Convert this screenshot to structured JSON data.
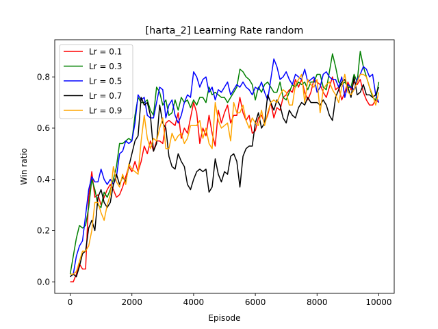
{
  "chart_data": {
    "type": "line",
    "title": "[harta_2] Learning Rate  random",
    "xlabel": "Episode",
    "ylabel": "Win ratio",
    "xlim": [
      -500,
      10500
    ],
    "ylim": [
      -0.045,
      0.945
    ],
    "xticks": [
      0,
      2000,
      4000,
      6000,
      8000,
      10000
    ],
    "xtick_labels": [
      "0",
      "2000",
      "4000",
      "6000",
      "8000",
      "10000"
    ],
    "yticks": [
      0.0,
      0.2,
      0.4,
      0.6,
      0.8
    ],
    "ytick_labels": [
      "0.0",
      "0.2",
      "0.4",
      "0.6",
      "0.8"
    ],
    "grid": false,
    "legend": "upper-left",
    "x": [
      0,
      100,
      200,
      300,
      400,
      500,
      600,
      700,
      800,
      900,
      1000,
      1100,
      1200,
      1300,
      1400,
      1500,
      1600,
      1700,
      1800,
      1900,
      2000,
      2100,
      2200,
      2300,
      2400,
      2500,
      2600,
      2700,
      2800,
      2900,
      3000,
      3100,
      3200,
      3300,
      3400,
      3500,
      3600,
      3700,
      3800,
      3900,
      4000,
      4100,
      4200,
      4300,
      4400,
      4500,
      4600,
      4700,
      4800,
      4900,
      5000,
      5100,
      5200,
      5300,
      5400,
      5500,
      5600,
      5700,
      5800,
      5900,
      6000,
      6100,
      6200,
      6300,
      6400,
      6500,
      6600,
      6700,
      6800,
      6900,
      7000,
      7100,
      7200,
      7300,
      7400,
      7500,
      7600,
      7700,
      7800,
      7900,
      8000,
      8100,
      8200,
      8300,
      8400,
      8500,
      8600,
      8700,
      8800,
      8900,
      9000,
      9100,
      9200,
      9300,
      9400,
      9500,
      9600,
      9700,
      9800,
      9900,
      10000
    ],
    "series": [
      {
        "name": "Lr = 0.1",
        "color": "#ff0000",
        "values": [
          0.0,
          0.0,
          0.03,
          0.07,
          0.05,
          0.05,
          0.33,
          0.43,
          0.33,
          0.34,
          0.3,
          0.33,
          0.36,
          0.38,
          0.36,
          0.33,
          0.34,
          0.37,
          0.41,
          0.45,
          0.43,
          0.47,
          0.43,
          0.47,
          0.53,
          0.5,
          0.55,
          0.51,
          0.55,
          0.55,
          0.54,
          0.62,
          0.63,
          0.62,
          0.61,
          0.66,
          0.56,
          0.6,
          0.58,
          0.64,
          0.7,
          0.66,
          0.54,
          0.6,
          0.57,
          0.65,
          0.58,
          0.53,
          0.67,
          0.62,
          0.66,
          0.69,
          0.62,
          0.65,
          0.65,
          0.72,
          0.66,
          0.63,
          0.65,
          0.58,
          0.59,
          0.64,
          0.65,
          0.62,
          0.65,
          0.7,
          0.64,
          0.68,
          0.67,
          0.72,
          0.73,
          0.75,
          0.74,
          0.79,
          0.76,
          0.79,
          0.74,
          0.71,
          0.74,
          0.79,
          0.78,
          0.77,
          0.74,
          0.72,
          0.76,
          0.8,
          0.75,
          0.76,
          0.71,
          0.74,
          0.78,
          0.75,
          0.78,
          0.77,
          0.79,
          0.74,
          0.71,
          0.69,
          0.69,
          0.71,
          0.7
        ]
      },
      {
        "name": "Lr = 0.3",
        "color": "#008000",
        "values": [
          0.03,
          0.1,
          0.17,
          0.22,
          0.21,
          0.22,
          0.29,
          0.4,
          0.36,
          0.3,
          0.29,
          0.35,
          0.33,
          0.36,
          0.4,
          0.45,
          0.54,
          0.54,
          0.55,
          0.56,
          0.55,
          0.65,
          0.72,
          0.7,
          0.7,
          0.71,
          0.67,
          0.65,
          0.76,
          0.74,
          0.69,
          0.71,
          0.65,
          0.66,
          0.71,
          0.67,
          0.72,
          0.7,
          0.71,
          0.68,
          0.71,
          0.69,
          0.72,
          0.72,
          0.7,
          0.76,
          0.73,
          0.74,
          0.73,
          0.72,
          0.72,
          0.7,
          0.72,
          0.74,
          0.76,
          0.83,
          0.82,
          0.8,
          0.79,
          0.77,
          0.71,
          0.76,
          0.74,
          0.77,
          0.78,
          0.76,
          0.74,
          0.74,
          0.78,
          0.72,
          0.71,
          0.74,
          0.77,
          0.76,
          0.78,
          0.77,
          0.78,
          0.75,
          0.78,
          0.78,
          0.81,
          0.81,
          0.76,
          0.75,
          0.82,
          0.89,
          0.84,
          0.78,
          0.77,
          0.78,
          0.76,
          0.76,
          0.81,
          0.78,
          0.9,
          0.84,
          0.8,
          0.76,
          0.72,
          0.71,
          0.78
        ]
      },
      {
        "name": "Lr = 0.5",
        "color": "#0000ff",
        "values": [
          0.02,
          0.03,
          0.1,
          0.14,
          0.16,
          0.26,
          0.36,
          0.41,
          0.39,
          0.39,
          0.44,
          0.4,
          0.38,
          0.4,
          0.38,
          0.41,
          0.5,
          0.51,
          0.55,
          0.54,
          0.55,
          0.62,
          0.73,
          0.71,
          0.72,
          0.65,
          0.64,
          0.64,
          0.7,
          0.76,
          0.75,
          0.64,
          0.69,
          0.71,
          0.65,
          0.62,
          0.65,
          0.7,
          0.73,
          0.72,
          0.82,
          0.8,
          0.76,
          0.79,
          0.8,
          0.74,
          0.76,
          0.71,
          0.75,
          0.74,
          0.76,
          0.78,
          0.73,
          0.75,
          0.77,
          0.76,
          0.78,
          0.76,
          0.75,
          0.73,
          0.76,
          0.75,
          0.78,
          0.74,
          0.71,
          0.79,
          0.87,
          0.84,
          0.79,
          0.8,
          0.82,
          0.79,
          0.77,
          0.81,
          0.8,
          0.79,
          0.83,
          0.78,
          0.79,
          0.8,
          0.74,
          0.76,
          0.81,
          0.82,
          0.8,
          0.79,
          0.79,
          0.76,
          0.8,
          0.72,
          0.77,
          0.76,
          0.75,
          0.79,
          0.81,
          0.84,
          0.83,
          0.8,
          0.81,
          0.73,
          0.7
        ]
      },
      {
        "name": "Lr = 0.7",
        "color": "#000000",
        "values": [
          0.02,
          0.03,
          0.02,
          0.06,
          0.11,
          0.12,
          0.21,
          0.24,
          0.2,
          0.33,
          0.36,
          0.31,
          0.29,
          0.31,
          0.38,
          0.42,
          0.38,
          0.41,
          0.39,
          0.45,
          0.5,
          0.55,
          0.57,
          0.72,
          0.69,
          0.7,
          0.65,
          0.51,
          0.54,
          0.69,
          0.62,
          0.6,
          0.49,
          0.45,
          0.44,
          0.5,
          0.47,
          0.45,
          0.38,
          0.36,
          0.4,
          0.43,
          0.44,
          0.43,
          0.44,
          0.35,
          0.37,
          0.48,
          0.42,
          0.39,
          0.43,
          0.42,
          0.49,
          0.5,
          0.47,
          0.37,
          0.49,
          0.52,
          0.53,
          0.53,
          0.62,
          0.66,
          0.6,
          0.62,
          0.73,
          0.7,
          0.67,
          0.71,
          0.69,
          0.64,
          0.62,
          0.67,
          0.65,
          0.64,
          0.68,
          0.7,
          0.69,
          0.72,
          0.7,
          0.7,
          0.7,
          0.69,
          0.71,
          0.69,
          0.65,
          0.63,
          0.72,
          0.75,
          0.78,
          0.79,
          0.76,
          0.72,
          0.8,
          0.73,
          0.74,
          0.77,
          0.73,
          0.73,
          0.72,
          0.73,
          0.76
        ]
      },
      {
        "name": "Lr = 0.9",
        "color": "#ffa500",
        "values": [
          0.03,
          0.03,
          0.04,
          0.08,
          0.12,
          0.12,
          0.14,
          0.2,
          0.31,
          0.31,
          0.27,
          0.24,
          0.3,
          0.34,
          0.45,
          0.39,
          0.37,
          0.42,
          0.38,
          0.46,
          0.44,
          0.43,
          0.42,
          0.55,
          0.65,
          0.56,
          0.52,
          0.56,
          0.55,
          0.6,
          0.64,
          0.52,
          0.52,
          0.58,
          0.55,
          0.57,
          0.58,
          0.54,
          0.56,
          0.61,
          0.61,
          0.61,
          0.63,
          0.56,
          0.6,
          0.54,
          0.52,
          0.7,
          0.63,
          0.6,
          0.61,
          0.62,
          0.55,
          0.7,
          0.66,
          0.66,
          0.69,
          0.63,
          0.6,
          0.64,
          0.62,
          0.61,
          0.67,
          0.61,
          0.66,
          0.7,
          0.71,
          0.7,
          0.73,
          0.75,
          0.74,
          0.69,
          0.69,
          0.77,
          0.79,
          0.81,
          0.7,
          0.79,
          0.77,
          0.76,
          0.79,
          0.66,
          0.75,
          0.77,
          0.78,
          0.75,
          0.73,
          0.7,
          0.76,
          0.81,
          0.74,
          0.73,
          0.75,
          0.78,
          0.81,
          0.81,
          0.8,
          0.76,
          0.73,
          0.69,
          0.74
        ]
      }
    ]
  }
}
